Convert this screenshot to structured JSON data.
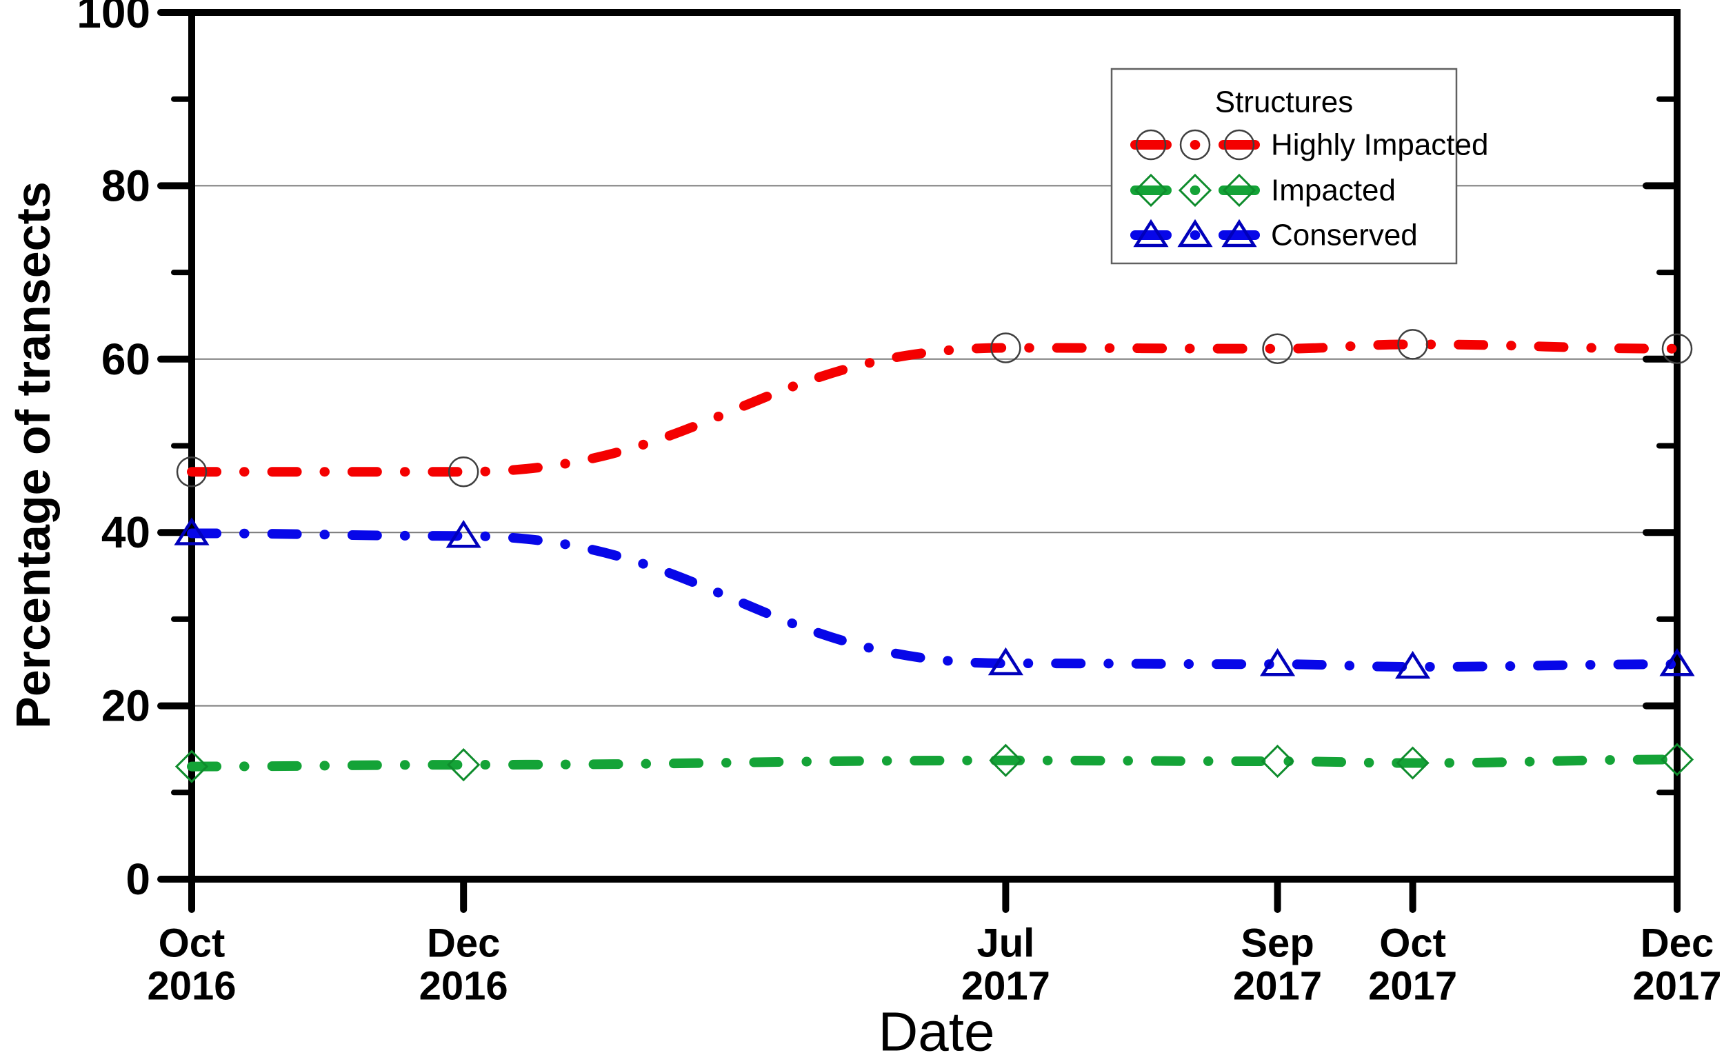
{
  "page": {
    "background": "#ffffff"
  },
  "chart_data": {
    "type": "line",
    "title": "",
    "xlabel": "Date",
    "ylabel": "Percentage of transects",
    "ylim": [
      0,
      100
    ],
    "grid": "horizontal-major",
    "grid_values": [
      20,
      40,
      60,
      80
    ],
    "ytick_values": [
      0,
      20,
      40,
      60,
      80,
      100
    ],
    "ytick_labels": [
      "0",
      "20",
      "40",
      "60",
      "80",
      "100"
    ],
    "ytick_minor_values": [
      10,
      30,
      50,
      70,
      90
    ],
    "x_categories": [
      {
        "line1": "Oct",
        "line2": "2016",
        "frac": 0
      },
      {
        "line1": "Dec",
        "line2": "2016",
        "frac": 0.183
      },
      {
        "line1": "Jul",
        "line2": "2017",
        "frac": 0.548
      },
      {
        "line1": "Sep",
        "line2": "2017",
        "frac": 0.731
      },
      {
        "line1": "Oct",
        "line2": "2017",
        "frac": 0.822
      },
      {
        "line1": "Dec",
        "line2": "2017",
        "frac": 1
      }
    ],
    "legend": {
      "title": "Structures",
      "position": "top-right"
    },
    "line_style": "dash-dot",
    "series": [
      {
        "name": "Highly Impacted",
        "color": "#f40000",
        "marker": "circle",
        "marker_stroke": "#3f3f3f",
        "values": [
          47,
          47,
          61.3,
          61.2,
          61.7,
          61.2
        ]
      },
      {
        "name": "Impacted",
        "color": "#14a337",
        "marker": "diamond",
        "marker_stroke": "#0e8c2c",
        "values": [
          13,
          13.2,
          13.7,
          13.6,
          13.4,
          13.8
        ]
      },
      {
        "name": "Conserved",
        "color": "#0707e8",
        "marker": "triangle",
        "marker_stroke": "#0000bb",
        "values": [
          39.9,
          39.6,
          24.9,
          24.8,
          24.5,
          24.8
        ]
      }
    ]
  }
}
